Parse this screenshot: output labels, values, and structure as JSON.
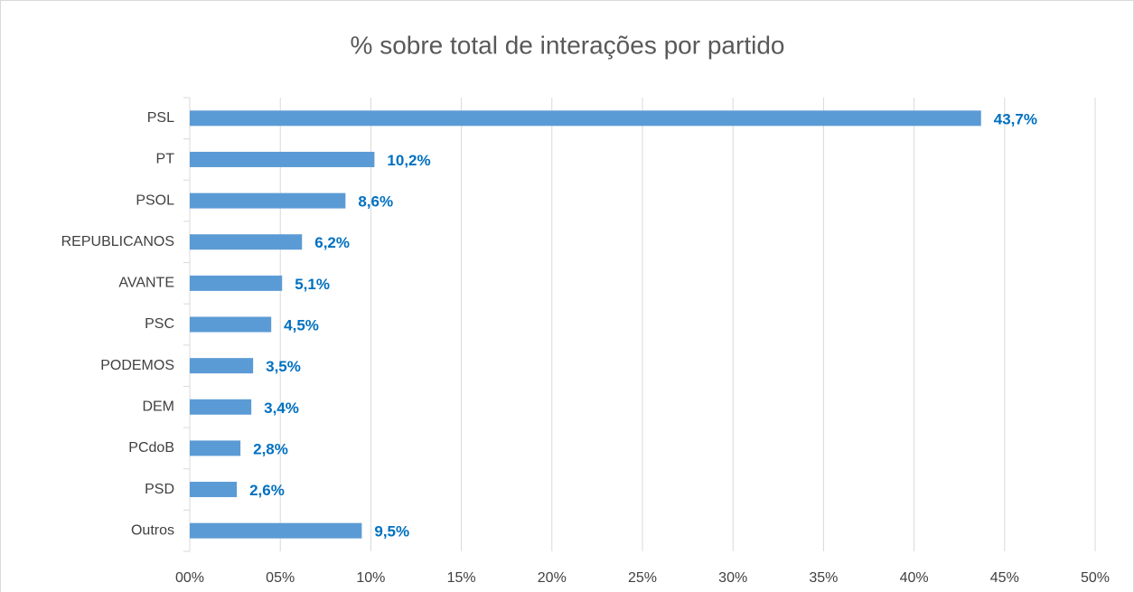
{
  "chart_data": {
    "type": "barh",
    "title": "% sobre total de interações por partido",
    "categories": [
      "PSL",
      "PT",
      "PSOL",
      "REPUBLICANOS",
      "AVANTE",
      "PSC",
      "PODEMOS",
      "DEM",
      "PCdoB",
      "PSD",
      "Outros"
    ],
    "values": [
      43.7,
      10.2,
      8.6,
      6.2,
      5.1,
      4.5,
      3.5,
      3.4,
      2.8,
      2.6,
      9.5
    ],
    "value_labels": [
      "43,7%",
      "10,2%",
      "8,6%",
      "6,2%",
      "5,1%",
      "4,5%",
      "3,5%",
      "3,4%",
      "2,8%",
      "2,6%",
      "9,5%"
    ],
    "color": "#5b9bd5",
    "label_color": "#0070c0",
    "xlim": [
      0,
      50
    ],
    "xticks": [
      {
        "value": 0,
        "label": "00%"
      },
      {
        "value": 5,
        "label": "05%"
      },
      {
        "value": 10,
        "label": "10%"
      },
      {
        "value": 15,
        "label": "15%"
      },
      {
        "value": 20,
        "label": "20%"
      },
      {
        "value": 25,
        "label": "25%"
      },
      {
        "value": 30,
        "label": "30%"
      },
      {
        "value": 35,
        "label": "35%"
      },
      {
        "value": 40,
        "label": "40%"
      },
      {
        "value": 45,
        "label": "45%"
      },
      {
        "value": 50,
        "label": "50%"
      }
    ],
    "grid": true
  }
}
